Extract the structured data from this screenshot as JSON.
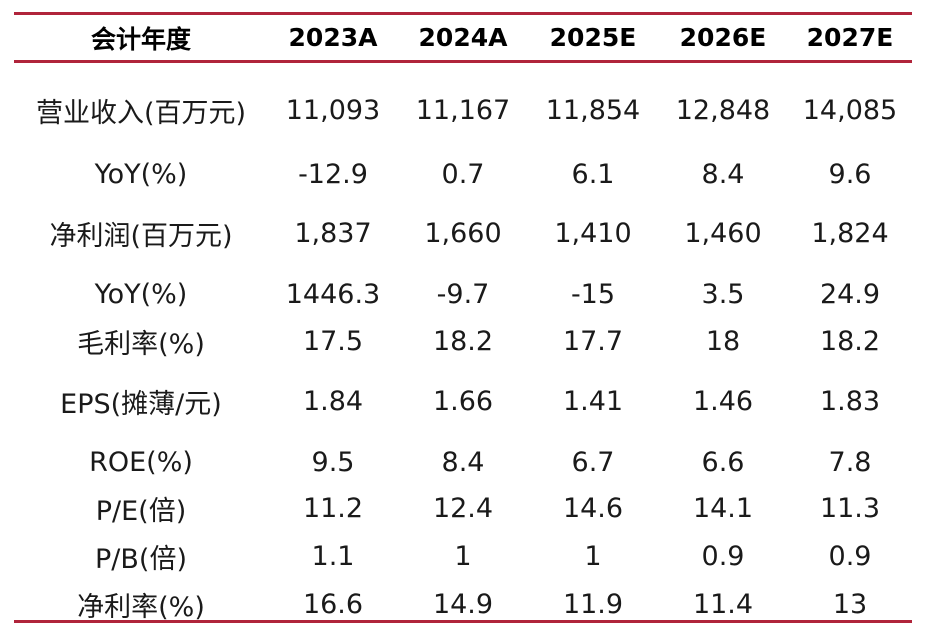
{
  "table": {
    "columns": [
      "会计年度",
      "2023A",
      "2024A",
      "2025E",
      "2026E",
      "2027E"
    ],
    "rows": [
      [
        "营业收入(百万元)",
        "11,093",
        "11,167",
        "11,854",
        "12,848",
        "14,085"
      ],
      [
        "YoY(%)",
        "-12.9",
        "0.7",
        "6.1",
        "8.4",
        "9.6"
      ],
      [
        "净利润(百万元)",
        "1,837",
        "1,660",
        "1,410",
        "1,460",
        "1,824"
      ],
      [
        "YoY(%)",
        "1446.3",
        "-9.7",
        "-15",
        "3.5",
        "24.9"
      ],
      [
        "毛利率(%)",
        "17.5",
        "18.2",
        "17.7",
        "18",
        "18.2"
      ],
      [
        "EPS(摊薄/元)",
        "1.84",
        "1.66",
        "1.41",
        "1.46",
        "1.83"
      ],
      [
        "ROE(%)",
        "9.5",
        "8.4",
        "6.7",
        "6.6",
        "7.8"
      ],
      [
        "P/E(倍)",
        "11.2",
        "12.4",
        "14.6",
        "14.1",
        "11.3"
      ],
      [
        "P/B(倍)",
        "1.1",
        "1",
        "1",
        "0.9",
        "0.9"
      ],
      [
        "净利率(%)",
        "16.6",
        "14.9",
        "11.9",
        "11.4",
        "13"
      ]
    ]
  },
  "colors": {
    "rule": "#b0243b",
    "text": "#1a1a1a"
  }
}
